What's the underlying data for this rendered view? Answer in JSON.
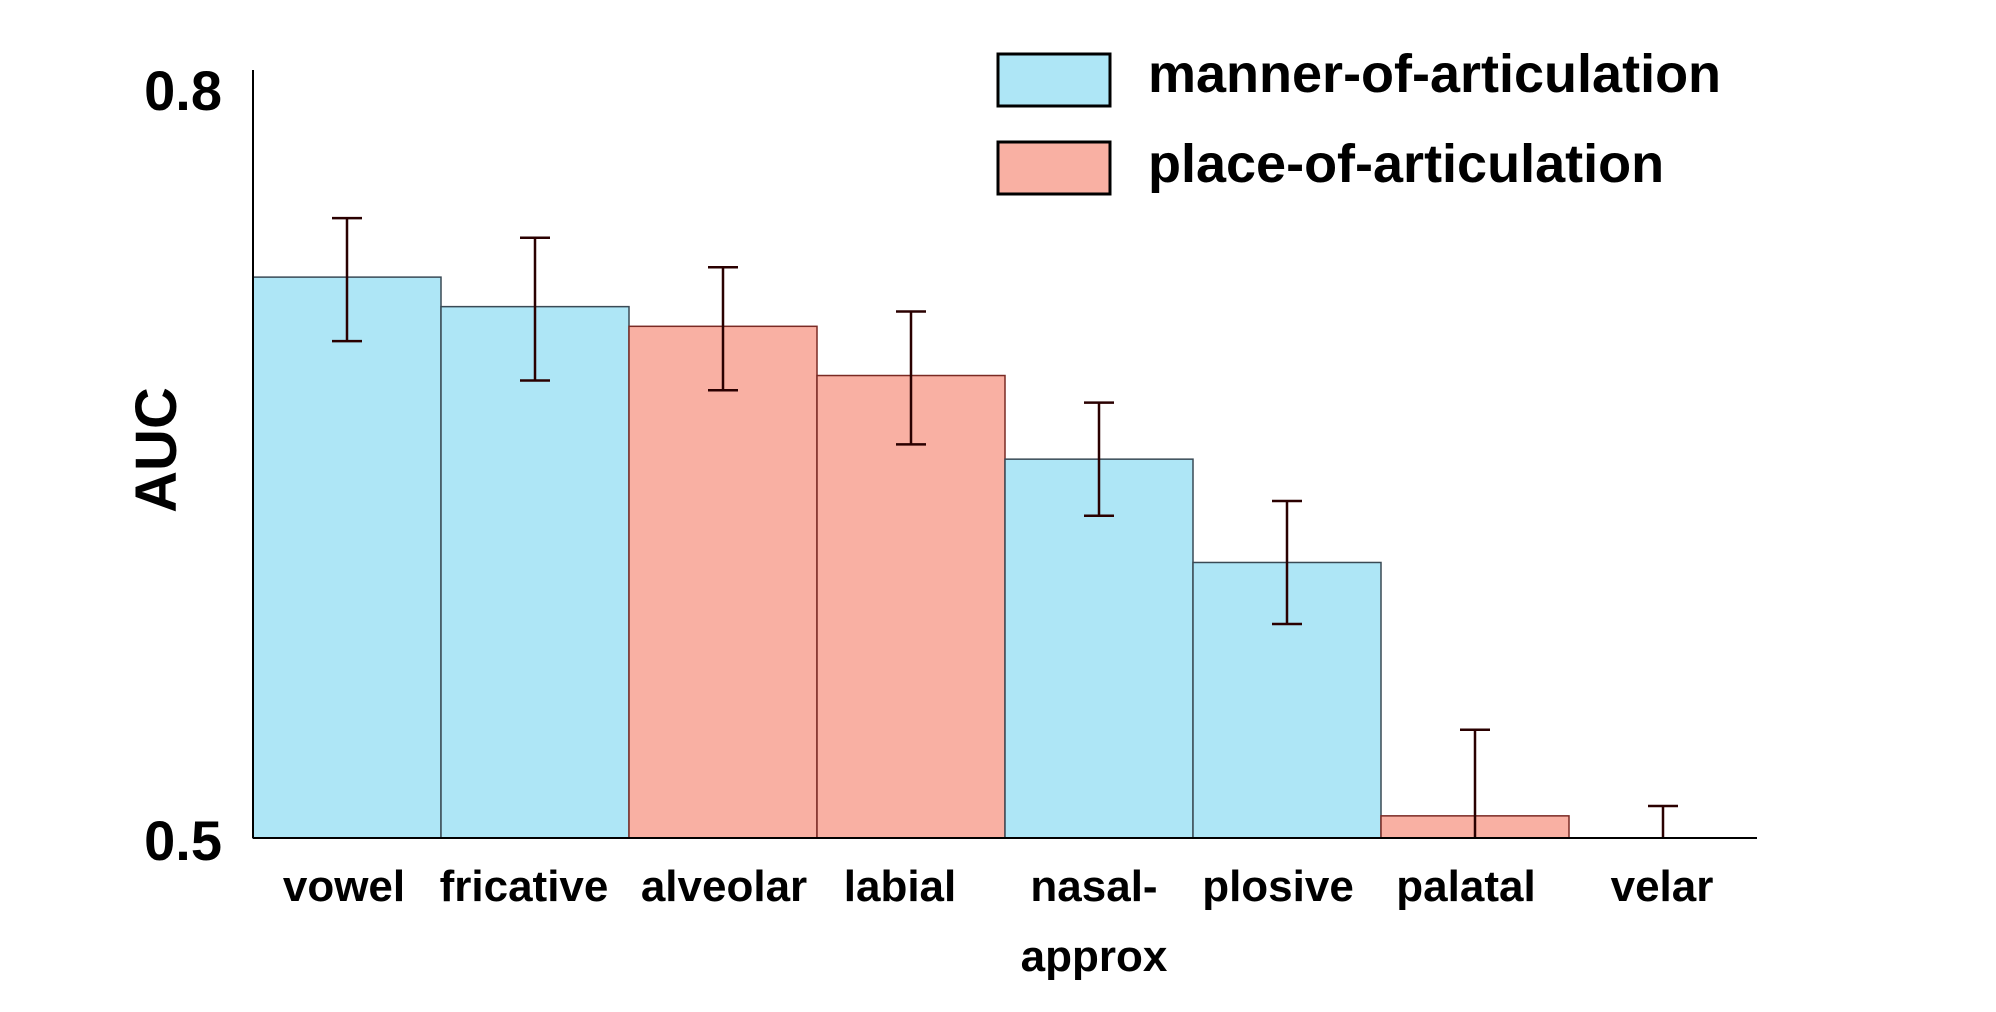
{
  "chart_data": {
    "type": "bar",
    "title": "",
    "xlabel": "",
    "ylabel": "AUC",
    "ylim": [
      0.5,
      0.8
    ],
    "yticks": [
      "0.8",
      "0.5"
    ],
    "grid": false,
    "legend_position": "top-right",
    "categories": [
      [
        "vowel"
      ],
      [
        "fricative"
      ],
      [
        "alveolar"
      ],
      [
        "labial"
      ],
      [
        "nasal-",
        "approx"
      ],
      [
        "plosive"
      ],
      [
        "palatal"
      ],
      [
        "velar"
      ]
    ],
    "series": [
      {
        "name": "manner-of-articulation",
        "color": "#aee6f6"
      },
      {
        "name": "place-of-articulation",
        "color": "#f9b0a3"
      }
    ],
    "bars": [
      {
        "category": "vowel",
        "series": 0,
        "value": 0.728,
        "err_low": 0.702,
        "err_high": 0.752
      },
      {
        "category": "fricative",
        "series": 0,
        "value": 0.716,
        "err_low": 0.686,
        "err_high": 0.744
      },
      {
        "category": "alveolar",
        "series": 1,
        "value": 0.708,
        "err_low": 0.682,
        "err_high": 0.732
      },
      {
        "category": "labial",
        "series": 1,
        "value": 0.688,
        "err_low": 0.66,
        "err_high": 0.714
      },
      {
        "category": "nasal-approx",
        "series": 0,
        "value": 0.654,
        "err_low": 0.631,
        "err_high": 0.677
      },
      {
        "category": "plosive",
        "series": 0,
        "value": 0.612,
        "err_low": 0.587,
        "err_high": 0.637
      },
      {
        "category": "palatal",
        "series": 1,
        "value": 0.509,
        "err_low": 0.5,
        "err_high": 0.544
      },
      {
        "category": "velar",
        "series": 1,
        "value": 0.5,
        "err_low": 0.5,
        "err_high": 0.513
      }
    ]
  }
}
